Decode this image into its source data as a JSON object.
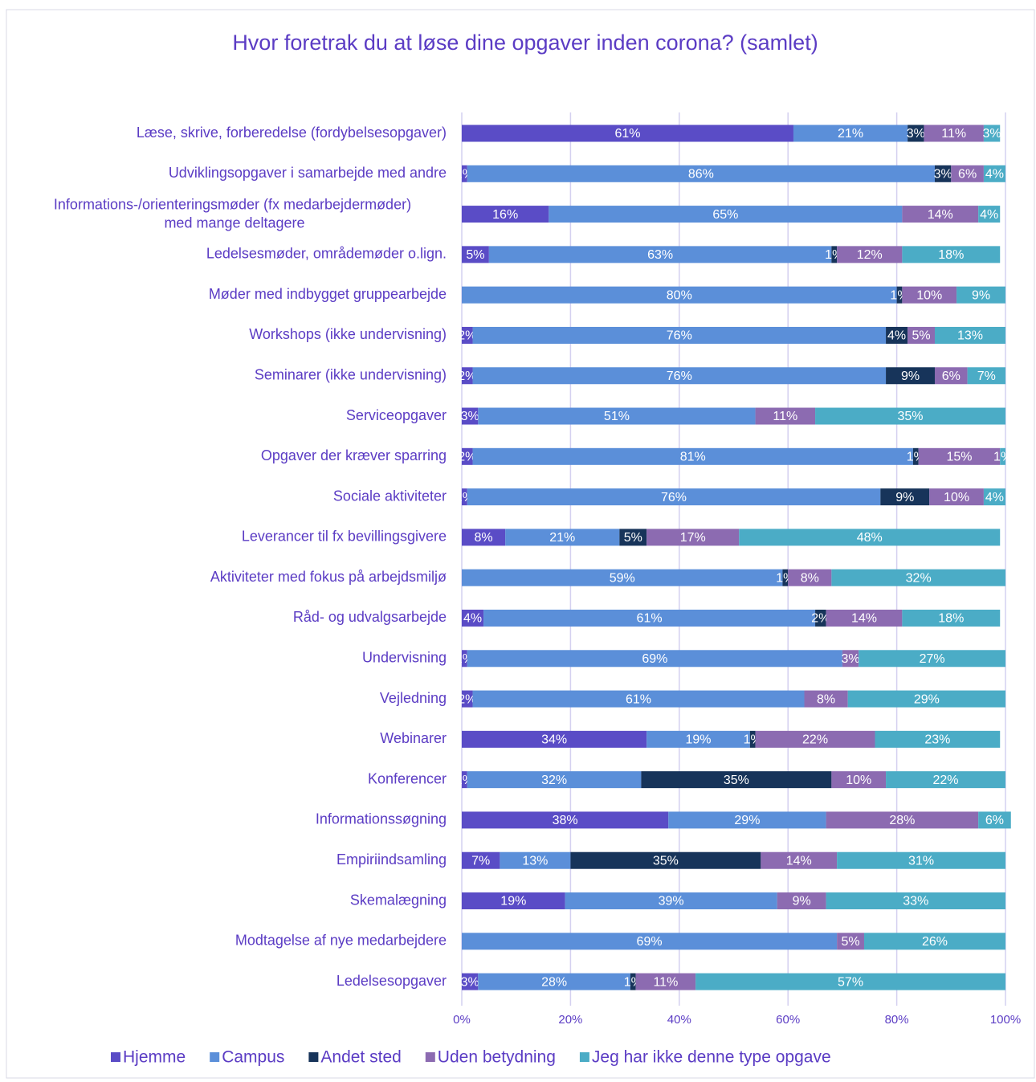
{
  "chart_data": {
    "type": "stacked-barh",
    "title": "Hvor foretrak du at løse dine opgaver inden corona? (samlet)",
    "categories": [
      "Læse, skrive, forberedelse (fordybelsesopgaver)",
      "Udviklingsopgaver i samarbejde med andre",
      "Informations-/orienteringsmøder (fx medarbejdermøder) med mange deltagere",
      "Ledelsesmøder, områdemøder o.lign.",
      "Møder med indbygget gruppearbejde",
      "Workshops (ikke undervisning)",
      "Seminarer (ikke undervisning)",
      "Serviceopgaver",
      "Opgaver der kræver sparring",
      "Sociale aktiviteter",
      "Leverancer til fx bevillingsgivere",
      "Aktiviteter med fokus på arbejdsmiljø",
      "Råd- og udvalgsarbejde",
      "Undervisning",
      "Vejledning",
      "Webinarer",
      "Konferencer",
      "Informationssøgning",
      "Empiriindsamling",
      "Skemalægning",
      "Modtagelse af nye medarbejdere",
      "Ledelsesopgaver"
    ],
    "series": [
      {
        "name": "Hjemme",
        "color": "#5a4cc6",
        "values": [
          61,
          1,
          16,
          5,
          0,
          2,
          2,
          3,
          2,
          1,
          8,
          0,
          4,
          1,
          2,
          34,
          1,
          38,
          7,
          19,
          0,
          3
        ],
        "value_labels": [
          "61%",
          "1%",
          "16%",
          "5%",
          null,
          "2%",
          "2%",
          "3%",
          "2%",
          "1%",
          "8%",
          null,
          "4%",
          "1%",
          "2%",
          "34%",
          "1%",
          "38%",
          "7%",
          "19%",
          null,
          "3%"
        ]
      },
      {
        "name": "Campus",
        "color": "#5b8fd9",
        "values": [
          21,
          86,
          65,
          63,
          80,
          76,
          76,
          51,
          81,
          76,
          21,
          59,
          61,
          69,
          61,
          19,
          32,
          29,
          13,
          39,
          69,
          28
        ],
        "value_labels": [
          "21%",
          "86%",
          "65%",
          "63%",
          "80%",
          "76%",
          "76%",
          "51%",
          "81%",
          "76%",
          "21%",
          "59%",
          "61%",
          "69%",
          "61%",
          "19%",
          "32%",
          "29%",
          "13%",
          "39%",
          "69%",
          "28%"
        ]
      },
      {
        "name": "Andet sted",
        "color": "#17345a",
        "values": [
          3,
          3,
          0,
          1,
          1,
          4,
          9,
          0,
          1,
          9,
          5,
          1,
          2,
          0,
          0,
          1,
          35,
          0,
          35,
          0,
          0,
          1
        ],
        "value_labels": [
          "3%",
          "3%",
          null,
          "1%",
          "1%",
          "4%",
          "9%",
          null,
          "1%",
          "9%",
          "5%",
          "1%",
          "2%",
          null,
          null,
          "1%",
          "35%",
          null,
          "35%",
          null,
          null,
          "1%"
        ]
      },
      {
        "name": "Uden betydning",
        "color": "#8c6bb1",
        "values": [
          11,
          6,
          14,
          12,
          10,
          5,
          6,
          11,
          15,
          10,
          17,
          8,
          14,
          3,
          8,
          22,
          10,
          28,
          14,
          9,
          5,
          11
        ],
        "value_labels": [
          "11%",
          "6%",
          "14%",
          "12%",
          "10%",
          "5%",
          "6%",
          "11%",
          "15%",
          "10%",
          "17%",
          "8%",
          "14%",
          "3%",
          "8%",
          "22%",
          "10%",
          "28%",
          "14%",
          "9%",
          "5%",
          "11%"
        ]
      },
      {
        "name": "Jeg har ikke denne type opgave",
        "color": "#4bacc6",
        "values": [
          3,
          4,
          4,
          18,
          9,
          13,
          7,
          35,
          1,
          4,
          48,
          32,
          18,
          27,
          29,
          23,
          22,
          6,
          31,
          33,
          26,
          57
        ],
        "value_labels": [
          "3%",
          "4%",
          "4%",
          "18%",
          "9%",
          "13%",
          "7%",
          "35%",
          "1%",
          "4%",
          "48%",
          "32%",
          "18%",
          "27%",
          "29%",
          "23%",
          "22%",
          "6%",
          "31%",
          "33%",
          "26%",
          "57%"
        ]
      }
    ],
    "xlim": [
      0,
      100
    ],
    "xticks": [
      {
        "value": 0,
        "label": "0%"
      },
      {
        "value": 20,
        "label": "20%"
      },
      {
        "value": 40,
        "label": "40%"
      },
      {
        "value": 60,
        "label": "60%"
      },
      {
        "value": 80,
        "label": "80%"
      },
      {
        "value": 100,
        "label": "100%"
      }
    ],
    "grid": true,
    "legend": "bottom"
  }
}
